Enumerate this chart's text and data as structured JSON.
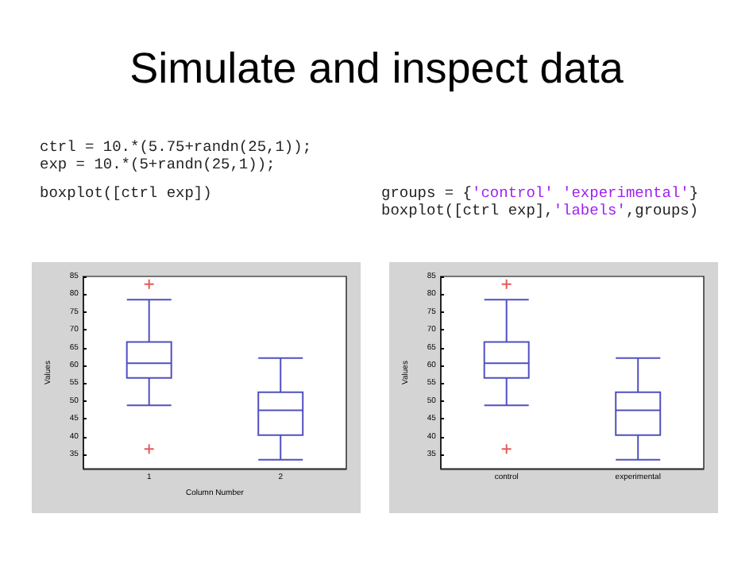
{
  "chart_data": [
    {
      "type": "box",
      "title": "Simulate and inspect data",
      "annotations": [
        "ctrl = 10.*(5.75+randn(25,1));",
        "exp = 10.*(5+randn(25,1));",
        "boxplot([ctrl exp])"
      ],
      "xlabel": "Column Number",
      "ylabel": "Values",
      "categories": [
        "1",
        "2"
      ],
      "boxes": [
        {
          "low": 48.8,
          "q1": 56.5,
          "median": 60.6,
          "q3": 66.6,
          "high": 78.5,
          "outliers": [
            82.8,
            36.5
          ]
        },
        {
          "low": 33.5,
          "q1": 40.4,
          "median": 47.4,
          "q3": 52.5,
          "high": 62.1
        }
      ],
      "color": "#5050c0",
      "ylim": [
        31,
        85
      ],
      "yticks": [
        35,
        40,
        45,
        50,
        55,
        60,
        65,
        70,
        75,
        80,
        85
      ],
      "grid": false
    },
    {
      "type": "box",
      "annotations": [
        "groups = {'control' 'experimental'}",
        "boxplot([ctrl exp],'labels',groups)"
      ],
      "ylabel": "Values",
      "categories": [
        "control",
        "experimental"
      ],
      "boxes": [
        {
          "low": 48.8,
          "q1": 56.5,
          "median": 60.6,
          "q3": 66.6,
          "high": 78.5,
          "outliers": [
            82.8,
            36.5
          ]
        },
        {
          "low": 33.5,
          "q1": 40.4,
          "median": 47.4,
          "q3": 52.5,
          "high": 62.1
        }
      ],
      "color": "#5050c0",
      "ylim": [
        31,
        85
      ],
      "yticks": [
        35,
        40,
        45,
        50,
        55,
        60,
        65,
        70,
        75,
        80,
        85
      ],
      "grid": false
    }
  ]
}
